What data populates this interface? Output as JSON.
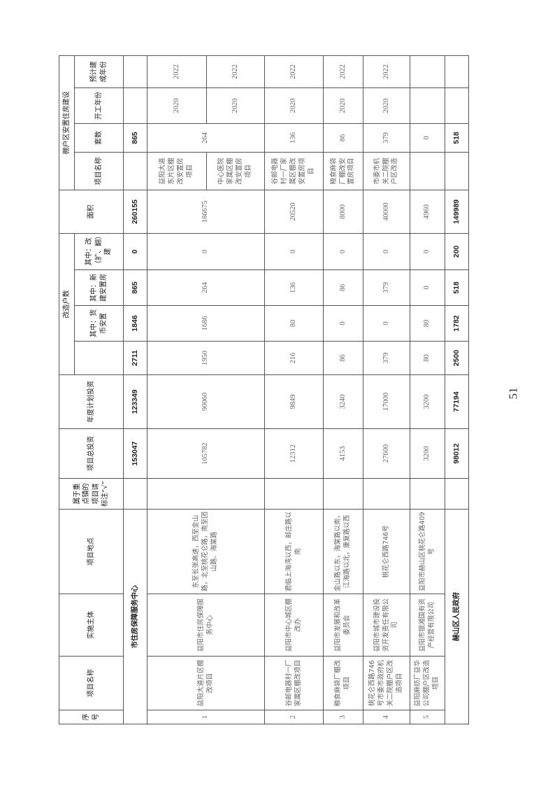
{
  "headers": {
    "no": "序号",
    "project_name": "项目名称",
    "entity": "实施主体",
    "location": "项目地点",
    "key_town": "属于重点镇的项目请标注“√”",
    "total_investment": "项目总投资",
    "annual_investment": "年度计划投资",
    "households_group": "改造户数",
    "households_total": "",
    "households_cash": "其中：货币安置",
    "households_new": "其中：新建安置房",
    "households_rebuild": "其中：改（扩、翻）建",
    "area": "面积",
    "housing_group": "棚户区安置住房建设",
    "housing_name": "项目名称",
    "housing_units": "套数",
    "housing_start": "开工年份",
    "housing_finish": "预计建成年份"
  },
  "subtotal": {
    "label": "市住房保障服务中心",
    "key_town": "",
    "total_investment": "153047",
    "annual_investment": "123349",
    "households_total": "2711",
    "households_cash": "1846",
    "households_new": "865",
    "households_rebuild": "0",
    "area": "260155",
    "housing_name": "",
    "housing_units": "865",
    "housing_start": "",
    "housing_finish": ""
  },
  "rows": [
    {
      "no": "1",
      "project_name": "益阳大道片区棚改项目",
      "entity": "益阳市住房保障服务中心",
      "location": "东至长张高速，西至金山路，北至桃花仑路，南至团山路、海棠路",
      "key_town": "",
      "total_investment": "105782",
      "annual_investment": "90060",
      "households_total": "1950",
      "households_cash": "1686",
      "households_new": "264",
      "households_rebuild": "0",
      "area": "186675",
      "housing_units": "264",
      "housing": [
        {
          "name": "益阳大道东片区棚改安置房项目",
          "start": "2020",
          "finish": "2022"
        },
        {
          "name": "中心医院家属区棚改安置房项目",
          "start": "2020",
          "finish": "2022"
        }
      ]
    },
    {
      "no": "2",
      "project_name": "谷邮电器村一厂家属区棚改项目",
      "entity": "益阳市中心城区棚改办",
      "location": "君临上海湾以西，邮庄路以南",
      "key_town": "",
      "total_investment": "12312",
      "annual_investment": "9849",
      "households_total": "216",
      "households_cash": "80",
      "households_new": "136",
      "households_rebuild": "0",
      "area": "20520",
      "housing_units": "136",
      "housing": [
        {
          "name": "谷邮电器村一厂家属区棚改安置房项目",
          "start": "2020",
          "finish": "2022"
        }
      ]
    },
    {
      "no": "3",
      "project_name": "粮食麻袋厂棚改项目",
      "entity": "益阳市发展和改革委员会",
      "location": "金山路以东，海棠路以南，江海路以北，康复路以西",
      "key_town": "",
      "total_investment": "4153",
      "annual_investment": "3240",
      "households_total": "86",
      "households_cash": "0",
      "households_new": "86",
      "households_rebuild": "0",
      "area": "8000",
      "housing_units": "86",
      "housing": [
        {
          "name": "粮食麻袋厂棚改安置房项目",
          "start": "2020",
          "finish": "2022"
        }
      ]
    },
    {
      "no": "4",
      "project_name": "桃花仑西路746号市委市政府机关二院棚户区改造项目",
      "entity": "益阳市城市建设投资开发责任有限公司",
      "location": "桃花仑西路746号",
      "key_town": "",
      "total_investment": "27600",
      "annual_investment": "17000",
      "households_total": "379",
      "households_cash": "0",
      "households_new": "379",
      "households_rebuild": "0",
      "area": "40000",
      "housing_units": "379",
      "housing": [
        {
          "name": "市委市机关二院棚户区改造",
          "start": "2020",
          "finish": "2022"
        }
      ]
    },
    {
      "no": "5",
      "project_name": "益阳麻纺厂益华公司棚户区改造项目",
      "entity": "益阳市银湘国有资产经营有限公司",
      "location": "益阳市赫山区桃花仑路409号",
      "key_town": "",
      "total_investment": "3200",
      "annual_investment": "3200",
      "households_total": "80",
      "households_cash": "80",
      "households_new": "0",
      "households_rebuild": "0",
      "area": "4960",
      "housing_units": "0",
      "housing": [
        {
          "name": "",
          "start": "",
          "finish": ""
        }
      ]
    }
  ],
  "total": {
    "label": "赫山区人民政府",
    "key_town": "",
    "total_investment": "98012",
    "annual_investment": "77194",
    "households_total": "2500",
    "households_cash": "1782",
    "households_new": "518",
    "households_rebuild": "200",
    "area": "149989",
    "housing_name": "",
    "housing_units": "518",
    "housing_start": "",
    "housing_finish": ""
  },
  "page_number": "51"
}
